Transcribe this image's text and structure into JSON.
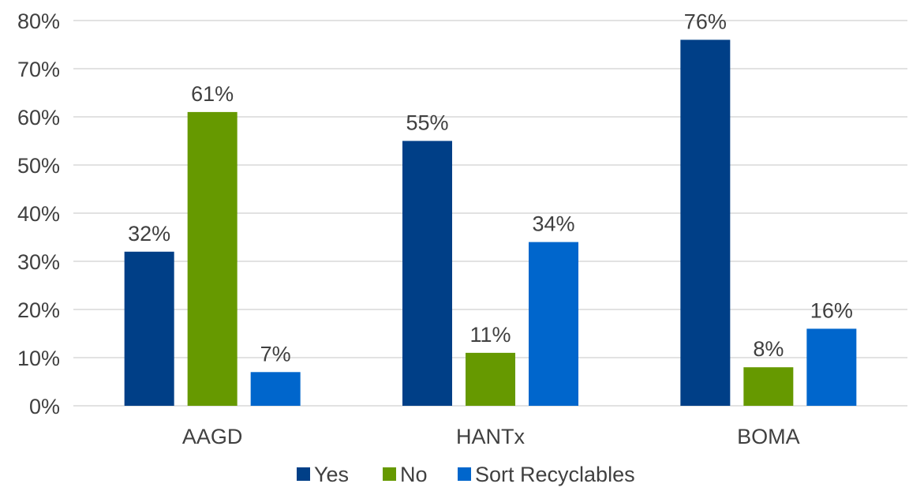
{
  "chart_data": {
    "type": "bar",
    "title": "",
    "xlabel": "",
    "ylabel": "",
    "categories": [
      "AAGD",
      "HANTx",
      "BOMA"
    ],
    "series": [
      {
        "name": "Yes",
        "color": "#003f87",
        "values": [
          32,
          55,
          76
        ],
        "labels": [
          "32%",
          "55%",
          "76%"
        ]
      },
      {
        "name": "No",
        "color": "#669900",
        "values": [
          61,
          11,
          8
        ],
        "labels": [
          "61%",
          "11%",
          "8%"
        ]
      },
      {
        "name": "Sort Recyclables",
        "color": "#0066cc",
        "values": [
          7,
          34,
          16
        ],
        "labels": [
          "7%",
          "34%",
          "16%"
        ]
      }
    ],
    "ylim": [
      0,
      80
    ],
    "yticks": [
      0,
      10,
      20,
      30,
      40,
      50,
      60,
      70,
      80
    ],
    "ytick_labels": [
      "0%",
      "10%",
      "20%",
      "30%",
      "40%",
      "50%",
      "60%",
      "70%",
      "80%"
    ],
    "grid": true,
    "legend_position": "bottom"
  }
}
